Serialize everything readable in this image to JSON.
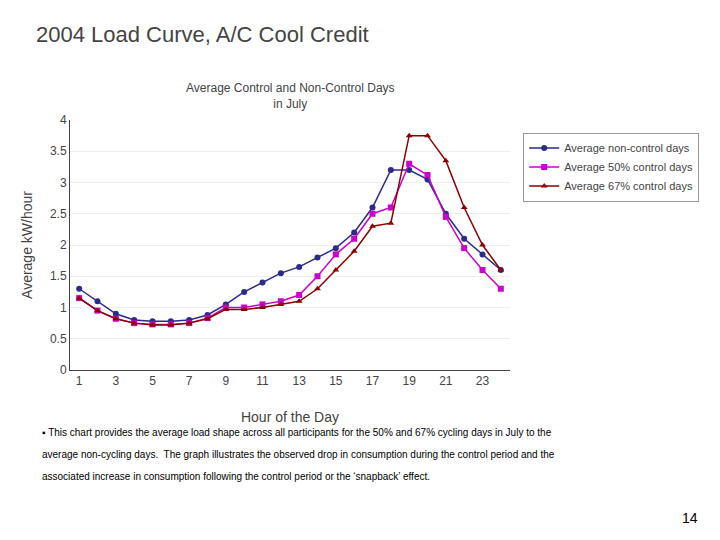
{
  "chart_data": {
    "type": "line",
    "title": "2004 Load Curve, A/C Cool Credit",
    "subtitle": "Average Control and Non-Control Days\nin July",
    "xlabel": "Hour of the Day",
    "ylabel": "Average kW/hour",
    "x": [
      1,
      2,
      3,
      4,
      5,
      6,
      7,
      8,
      9,
      10,
      11,
      12,
      13,
      14,
      15,
      16,
      17,
      18,
      19,
      20,
      21,
      22,
      23,
      24
    ],
    "series": [
      {
        "name": "Average non-control days",
        "color": "#2B2B8B",
        "marker": "circle",
        "values": [
          1.3,
          1.1,
          0.9,
          0.8,
          0.78,
          0.78,
          0.8,
          0.88,
          1.05,
          1.25,
          1.4,
          1.55,
          1.65,
          1.8,
          1.95,
          2.2,
          2.6,
          3.2,
          3.2,
          3.05,
          2.5,
          2.1,
          1.85,
          1.6
        ]
      },
      {
        "name": "Average 50% control days",
        "color": "#CC00CC",
        "marker": "square",
        "values": [
          1.15,
          0.95,
          0.82,
          0.75,
          0.73,
          0.73,
          0.75,
          0.83,
          1.0,
          1.0,
          1.05,
          1.1,
          1.2,
          1.5,
          1.85,
          2.1,
          2.5,
          2.6,
          3.3,
          3.12,
          2.45,
          1.95,
          1.6,
          1.3
        ]
      },
      {
        "name": "Average 67% control days",
        "color": "#8B0000",
        "marker": "triangle-up",
        "values": [
          1.15,
          0.95,
          0.82,
          0.75,
          0.72,
          0.72,
          0.75,
          0.82,
          0.97,
          0.97,
          1.0,
          1.05,
          1.1,
          1.3,
          1.6,
          1.9,
          2.3,
          2.35,
          3.75,
          3.75,
          3.35,
          2.6,
          2.0,
          1.6
        ]
      }
    ],
    "xlim": [
      0.5,
      24.5
    ],
    "ylim": [
      0,
      4.0
    ],
    "xticks": [
      1,
      3,
      5,
      7,
      9,
      11,
      13,
      15,
      17,
      19,
      21,
      23
    ],
    "yticks": [
      0,
      0.5,
      1,
      1.5,
      2,
      2.5,
      3,
      3.5,
      4
    ],
    "grid": true,
    "legend": "right",
    "annotations": [
      "▪ This chart provides the average load shape across all participants for the 50% and 67% cycling days in July to the",
      "average non-cycling days.  The graph illustrates the observed drop in consumption during the control period and the",
      "associated increase in consumption following the control period or the ‘snapback’ effect.",
      "14"
    ]
  }
}
